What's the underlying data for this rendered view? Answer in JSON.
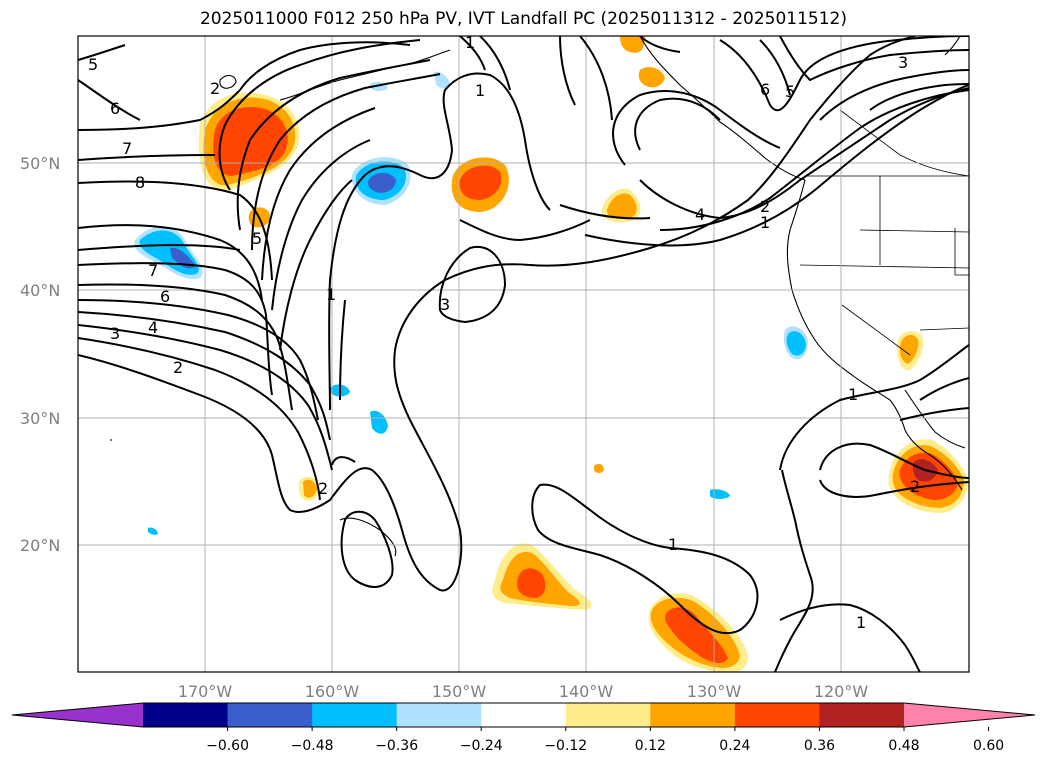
{
  "title": "2025011000 F012 250 hPa PV, IVT Landfall PC (2025011312 - 2025011512)",
  "map": {
    "lat_labels": [
      "50°N",
      "40°N",
      "30°N",
      "20°N"
    ],
    "lon_labels": [
      "170°W",
      "160°W",
      "150°W",
      "140°W",
      "130°W",
      "120°W"
    ],
    "contour_labels": [
      "5",
      "6",
      "7",
      "8",
      "5",
      "7",
      "6",
      "4",
      "3",
      "2",
      "1",
      "1",
      "3",
      "2",
      "1",
      "6",
      "5",
      "3",
      "4",
      "2",
      "1",
      "1",
      "2",
      "1",
      "2",
      "1"
    ]
  },
  "colorbar": {
    "ticks": [
      "−0.60",
      "−0.48",
      "−0.36",
      "−0.24",
      "−0.12",
      "0.12",
      "0.24",
      "0.36",
      "0.48",
      "0.60"
    ],
    "colors": [
      "#9932cc",
      "#00008b",
      "#3a5fcd",
      "#00bfff",
      "#b0e2ff",
      "#ffffff",
      "#ffec8b",
      "#ffa500",
      "#ff4500",
      "#b22222",
      "#ff82ab"
    ]
  }
}
